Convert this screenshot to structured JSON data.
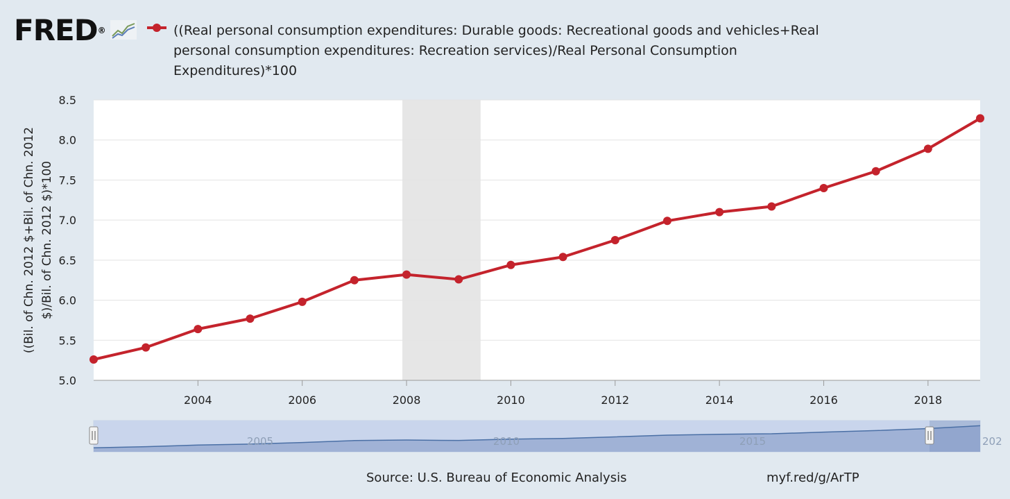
{
  "logo": {
    "text": "FRED",
    "mark": "®",
    "icon": "line-graph-icon"
  },
  "colors": {
    "series": "#c4232c",
    "recession": "#e6e6e6",
    "background": "#e1e9f0",
    "navigator_fill": "#7e96c4"
  },
  "chart_data": {
    "type": "line",
    "title": "((Real personal consumption expenditures: Durable goods: Recreational goods and vehicles+Real personal consumption expenditures: Recreation services)/Real Personal Consumption Expenditures)*100",
    "ylabel_lines": [
      "((Bil. of Chn. 2012 $+Bil. of Chn. 2012",
      "$)/Bil. of Chn. 2012 $)*100"
    ],
    "xlabel": "",
    "ylim": [
      5.0,
      8.5
    ],
    "yticks": [
      "5.0",
      "5.5",
      "6.0",
      "6.5",
      "7.0",
      "7.5",
      "8.0",
      "8.5"
    ],
    "xlim": [
      2002,
      2019
    ],
    "xticks": [
      "2004",
      "2006",
      "2008",
      "2010",
      "2012",
      "2014",
      "2016",
      "2018"
    ],
    "grid": true,
    "legend": "top",
    "recession_shading": [
      {
        "start": 2007.92,
        "end": 2009.42
      }
    ],
    "series": [
      {
        "name": "((Real personal consumption expenditures: Durable goods: Recreational goods and vehicles+Real personal consumption expenditures: Recreation services)/Real Personal Consumption Expenditures)*100",
        "x": [
          2002,
          2003,
          2004,
          2005,
          2006,
          2007,
          2008,
          2009,
          2010,
          2011,
          2012,
          2013,
          2014,
          2015,
          2016,
          2017,
          2018,
          2019
        ],
        "values": [
          5.26,
          5.41,
          5.64,
          5.77,
          5.98,
          6.25,
          6.32,
          6.26,
          6.44,
          6.54,
          6.75,
          6.99,
          7.1,
          7.17,
          7.4,
          7.61,
          7.89,
          8.27
        ]
      }
    ],
    "navigator": {
      "labels": [
        "2005",
        "2010",
        "2015",
        "202"
      ]
    }
  },
  "footer": {
    "source": "Source: U.S. Bureau of Economic Analysis",
    "link": "myf.red/g/ArTP"
  }
}
